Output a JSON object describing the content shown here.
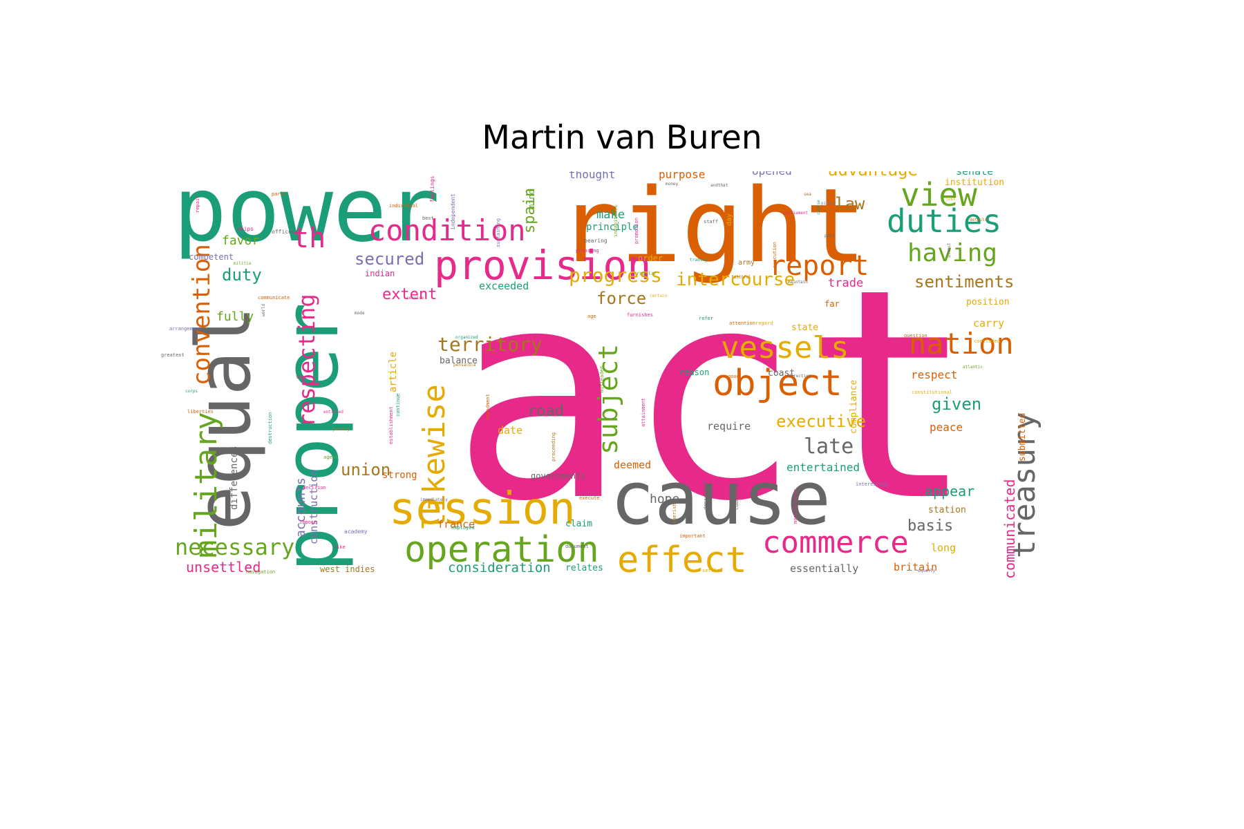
{
  "title": "Martin van Buren",
  "palette": {
    "green": "#1b9e77",
    "orange": "#d95f02",
    "purple": "#7570b3",
    "pink": "#e7298a",
    "lime": "#66a61e",
    "gold": "#e6ab02",
    "brown": "#a6761d",
    "gray": "#666666"
  },
  "words": [
    {
      "text": "act",
      "color": "pink"
    },
    {
      "text": "right",
      "color": "orange"
    },
    {
      "text": "power",
      "color": "green"
    },
    {
      "text": "proper",
      "color": "green"
    },
    {
      "text": "equal",
      "color": "gray"
    },
    {
      "text": "cause",
      "color": "gray"
    },
    {
      "text": "provision",
      "color": "pink"
    },
    {
      "text": "operation",
      "color": "lime"
    },
    {
      "text": "session",
      "color": "gold"
    },
    {
      "text": "object",
      "color": "orange"
    },
    {
      "text": "effect",
      "color": "gold"
    },
    {
      "text": "condition",
      "color": "pink"
    },
    {
      "text": "view",
      "color": "lime"
    },
    {
      "text": "duties",
      "color": "green"
    },
    {
      "text": "vessels",
      "color": "gold"
    },
    {
      "text": "nation",
      "color": "orange"
    },
    {
      "text": "commerce",
      "color": "pink"
    },
    {
      "text": "treasury",
      "color": "gray"
    },
    {
      "text": "report",
      "color": "orange"
    },
    {
      "text": "having",
      "color": "lime"
    },
    {
      "text": "military",
      "color": "lime"
    },
    {
      "text": "convention",
      "color": "orange"
    },
    {
      "text": "likewise",
      "color": "gold"
    },
    {
      "text": "subject",
      "color": "lime"
    },
    {
      "text": "respecting",
      "color": "pink"
    },
    {
      "text": "th",
      "color": "pink"
    },
    {
      "text": "necessary",
      "color": "lime"
    },
    {
      "text": "late",
      "color": "gray"
    },
    {
      "text": "territory",
      "color": "brown"
    },
    {
      "text": "sentiments",
      "color": "brown"
    },
    {
      "text": "intercourse",
      "color": "gold"
    },
    {
      "text": "progress",
      "color": "gold"
    },
    {
      "text": "advantage",
      "color": "gold"
    },
    {
      "text": "secured",
      "color": "purple"
    },
    {
      "text": "union",
      "color": "brown"
    },
    {
      "text": "executive",
      "color": "gold"
    },
    {
      "text": "force",
      "color": "brown"
    },
    {
      "text": "law",
      "color": "brown"
    },
    {
      "text": "given",
      "color": "green"
    },
    {
      "text": "extent",
      "color": "pink"
    },
    {
      "text": "duty",
      "color": "green"
    },
    {
      "text": "road",
      "color": "gray"
    },
    {
      "text": "spain",
      "color": "lime"
    },
    {
      "text": "appear",
      "color": "green"
    },
    {
      "text": "basis",
      "color": "gray"
    },
    {
      "text": "unsettled",
      "color": "pink"
    },
    {
      "text": "consideration",
      "color": "green"
    },
    {
      "text": "communicated",
      "color": "pink"
    },
    {
      "text": "accounts",
      "color": "purple"
    },
    {
      "text": "hope",
      "color": "gray"
    },
    {
      "text": "favor",
      "color": "lime"
    },
    {
      "text": "fully",
      "color": "lime"
    },
    {
      "text": "trade",
      "color": "pink"
    },
    {
      "text": "make",
      "color": "green"
    },
    {
      "text": "purpose",
      "color": "orange"
    },
    {
      "text": "thought",
      "color": "purple"
    },
    {
      "text": "opened",
      "color": "purple"
    },
    {
      "text": "respect",
      "color": "orange"
    },
    {
      "text": "peace",
      "color": "orange"
    },
    {
      "text": "carry",
      "color": "gold"
    },
    {
      "text": "entertained",
      "color": "green"
    },
    {
      "text": "deemed",
      "color": "orange"
    },
    {
      "text": "date",
      "color": "gold"
    },
    {
      "text": "exceeded",
      "color": "green"
    },
    {
      "text": "require",
      "color": "gray"
    },
    {
      "text": "long",
      "color": "gold"
    },
    {
      "text": "britain",
      "color": "orange"
    },
    {
      "text": "essentially",
      "color": "gray"
    },
    {
      "text": "france",
      "color": "orange"
    },
    {
      "text": "principle",
      "color": "green"
    },
    {
      "text": "senate",
      "color": "green"
    },
    {
      "text": "construction",
      "color": "purple"
    },
    {
      "text": "differences",
      "color": "gray"
    },
    {
      "text": "state",
      "color": "gold"
    },
    {
      "text": "article",
      "color": "gold"
    },
    {
      "text": "compliance",
      "color": "gold"
    },
    {
      "text": "submitted",
      "color": "orange"
    },
    {
      "text": "institution",
      "color": "gold"
    },
    {
      "text": "position",
      "color": "gold"
    },
    {
      "text": "strong",
      "color": "orange"
    },
    {
      "text": "balance",
      "color": "gray"
    },
    {
      "text": "coast",
      "color": "gray"
    },
    {
      "text": "station",
      "color": "brown"
    },
    {
      "text": "claim",
      "color": "green"
    },
    {
      "text": "relates",
      "color": "green"
    },
    {
      "text": "governments",
      "color": "gray"
    },
    {
      "text": "order",
      "color": "gold"
    },
    {
      "text": "indian",
      "color": "pink"
    },
    {
      "text": "competent",
      "color": "purple"
    },
    {
      "text": "west indies",
      "color": "brown"
    },
    {
      "text": "reason",
      "color": "green"
    },
    {
      "text": "mind",
      "color": "lime"
    },
    {
      "text": "far",
      "color": "orange"
    },
    {
      "text": "army",
      "color": "brown"
    },
    {
      "text": "day",
      "color": "gold"
    },
    {
      "text": "officers",
      "color": "gray"
    },
    {
      "text": "ships",
      "color": "pink"
    },
    {
      "text": "paris",
      "color": "orange"
    },
    {
      "text": "individual",
      "color": "orange"
    },
    {
      "text": "best",
      "color": "gray"
    },
    {
      "text": "feelings",
      "color": "pink"
    },
    {
      "text": "independent",
      "color": "purple"
    },
    {
      "text": "bearing",
      "color": "gray"
    },
    {
      "text": "pleasing",
      "color": "pink"
    },
    {
      "text": "regular",
      "color": "lime"
    },
    {
      "text": "certain",
      "color": "gold"
    },
    {
      "text": "furnishes",
      "color": "pink"
    },
    {
      "text": "organized",
      "color": "green"
    },
    {
      "text": "pensacola",
      "color": "brown"
    },
    {
      "text": "refer",
      "color": "green"
    },
    {
      "text": "attention",
      "color": "orange"
    },
    {
      "text": "regard",
      "color": "gold"
    },
    {
      "text": "question",
      "color": "brown"
    },
    {
      "text": "concluded",
      "color": "gold"
    },
    {
      "text": "atlantic",
      "color": "lime"
    },
    {
      "text": "constitutional",
      "color": "gold"
    },
    {
      "text": "direction",
      "color": "gray"
    },
    {
      "text": "good",
      "color": "orange"
    },
    {
      "text": "mode",
      "color": "gray"
    },
    {
      "text": "service",
      "color": "pink"
    },
    {
      "text": "communicate",
      "color": "orange"
    },
    {
      "text": "age",
      "color": "orange"
    },
    {
      "text": "arrangement",
      "color": "purple"
    },
    {
      "text": "greatest",
      "color": "gray"
    },
    {
      "text": "corps",
      "color": "green"
    },
    {
      "text": "liberties",
      "color": "orange"
    },
    {
      "text": "taken",
      "color": "pink"
    },
    {
      "text": "entitled",
      "color": "pink"
    },
    {
      "text": "january",
      "color": "brown"
    },
    {
      "text": "agent",
      "color": "lime"
    },
    {
      "text": "decision",
      "color": "pink"
    },
    {
      "text": "impose",
      "color": "pink"
    },
    {
      "text": "academy",
      "color": "purple"
    },
    {
      "text": "like",
      "color": "pink"
    },
    {
      "text": "navigation",
      "color": "lime"
    },
    {
      "text": "employed",
      "color": "green"
    },
    {
      "text": "immediately",
      "color": "purple"
    },
    {
      "text": "document",
      "color": "gray"
    },
    {
      "text": "settled",
      "color": "gold"
    },
    {
      "text": "equally",
      "color": "purple"
    },
    {
      "text": "interesting",
      "color": "purple"
    },
    {
      "text": "money",
      "color": "gray"
    },
    {
      "text": "andthat",
      "color": "gray"
    },
    {
      "text": "sea",
      "color": "brown"
    },
    {
      "text": "piracy",
      "color": "purple"
    },
    {
      "text": "parliament",
      "color": "pink"
    },
    {
      "text": "staff",
      "color": "gray"
    },
    {
      "text": "trading",
      "color": "green"
    },
    {
      "text": "faithful",
      "color": "brown"
    },
    {
      "text": "maintain",
      "color": "gray"
    },
    {
      "text": "just",
      "color": "gold"
    },
    {
      "text": "details",
      "color": "orange"
    },
    {
      "text": "post",
      "color": "gray"
    },
    {
      "text": "militia",
      "color": "lime"
    },
    {
      "text": "world",
      "color": "gray"
    },
    {
      "text": "inhabitants",
      "color": "lime"
    },
    {
      "text": "promotion",
      "color": "pink"
    },
    {
      "text": "execution",
      "color": "orange"
    },
    {
      "text": "utmost",
      "color": "gray"
    },
    {
      "text": "course",
      "color": "green"
    },
    {
      "text": "repair",
      "color": "pink"
    },
    {
      "text": "sustaining",
      "color": "purple"
    },
    {
      "text": "establishment",
      "color": "pink"
    },
    {
      "text": "continue",
      "color": "green"
    },
    {
      "text": "destruction",
      "color": "green"
    },
    {
      "text": "amendment",
      "color": "orange"
    },
    {
      "text": "proceeding",
      "color": "brown"
    },
    {
      "text": "communication",
      "color": "pink"
    },
    {
      "text": "misleaded",
      "color": "lime"
    },
    {
      "text": "attainment",
      "color": "pink"
    },
    {
      "text": "department",
      "color": "gray"
    },
    {
      "text": "countries",
      "color": "gray"
    },
    {
      "text": "cherish",
      "color": "brown"
    },
    {
      "text": "manufactures",
      "color": "pink"
    },
    {
      "text": "important",
      "color": "orange"
    },
    {
      "text": "execute",
      "color": "orange"
    }
  ]
}
